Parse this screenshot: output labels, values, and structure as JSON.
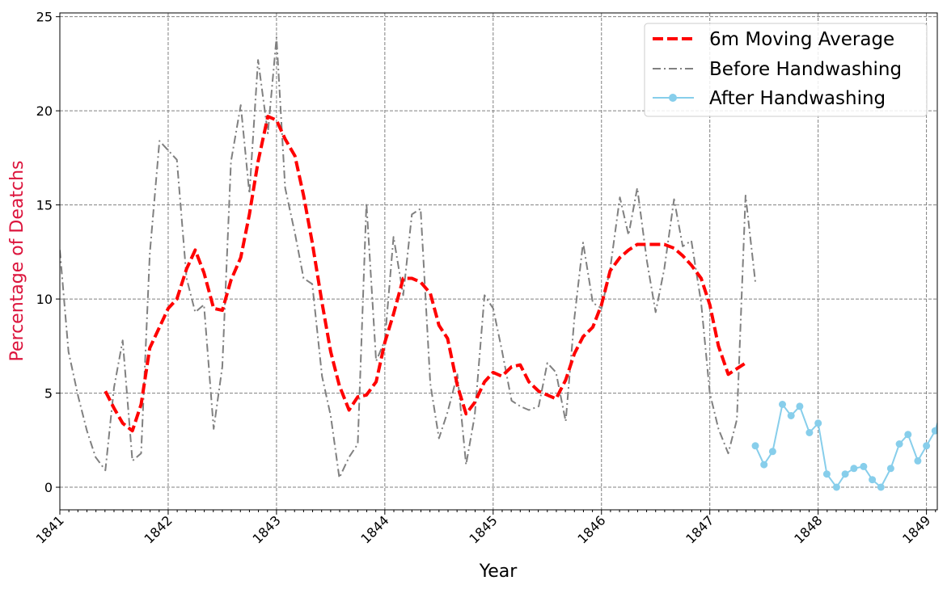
{
  "chart_data": {
    "type": "line",
    "xlabel": "Year",
    "ylabel": "Percentage of Deatchs",
    "ylabel_color": "#dc143c",
    "xlim": [
      1841.0,
      1849.1
    ],
    "ylim": [
      -1.2,
      25.2
    ],
    "x_ticks": [
      "1841",
      "1842",
      "1843",
      "1844",
      "1845",
      "1846",
      "1847",
      "1848",
      "1849"
    ],
    "y_ticks": [
      "0",
      "5",
      "10",
      "15",
      "20",
      "25"
    ],
    "grid": true,
    "legend_position": "top-right",
    "series": [
      {
        "name": "6m Moving Average",
        "color": "#ff0000",
        "style": "dashed",
        "points": [
          [
            1841.42,
            5.1
          ],
          [
            1841.5,
            4.2
          ],
          [
            1841.58,
            3.4
          ],
          [
            1841.67,
            3.0
          ],
          [
            1841.75,
            4.4
          ],
          [
            1841.83,
            7.4
          ],
          [
            1841.92,
            8.5
          ],
          [
            1842.0,
            9.5
          ],
          [
            1842.08,
            10.0
          ],
          [
            1842.17,
            11.6
          ],
          [
            1842.25,
            12.6
          ],
          [
            1842.33,
            11.4
          ],
          [
            1842.42,
            9.5
          ],
          [
            1842.5,
            9.4
          ],
          [
            1842.58,
            11.0
          ],
          [
            1842.67,
            12.2
          ],
          [
            1842.75,
            14.5
          ],
          [
            1842.83,
            17.3
          ],
          [
            1842.92,
            19.7
          ],
          [
            1843.0,
            19.5
          ],
          [
            1843.08,
            18.5
          ],
          [
            1843.17,
            17.6
          ],
          [
            1843.25,
            15.5
          ],
          [
            1843.33,
            13.0
          ],
          [
            1843.42,
            9.8
          ],
          [
            1843.5,
            7.2
          ],
          [
            1843.58,
            5.4
          ],
          [
            1843.67,
            4.1
          ],
          [
            1843.75,
            4.8
          ],
          [
            1843.83,
            4.9
          ],
          [
            1843.92,
            5.6
          ],
          [
            1844.0,
            7.7
          ],
          [
            1844.08,
            9.2
          ],
          [
            1844.17,
            11.1
          ],
          [
            1844.25,
            11.1
          ],
          [
            1844.33,
            10.9
          ],
          [
            1844.42,
            10.3
          ],
          [
            1844.5,
            8.6
          ],
          [
            1844.58,
            7.9
          ],
          [
            1844.67,
            5.4
          ],
          [
            1844.75,
            3.9
          ],
          [
            1844.83,
            4.5
          ],
          [
            1844.92,
            5.6
          ],
          [
            1845.0,
            6.1
          ],
          [
            1845.08,
            5.9
          ],
          [
            1845.17,
            6.4
          ],
          [
            1845.25,
            6.5
          ],
          [
            1845.33,
            5.6
          ],
          [
            1845.42,
            5.1
          ],
          [
            1845.5,
            4.9
          ],
          [
            1845.58,
            4.7
          ],
          [
            1845.67,
            5.7
          ],
          [
            1845.75,
            7.1
          ],
          [
            1845.83,
            8.0
          ],
          [
            1845.92,
            8.5
          ],
          [
            1846.0,
            9.7
          ],
          [
            1846.08,
            11.5
          ],
          [
            1846.17,
            12.2
          ],
          [
            1846.25,
            12.6
          ],
          [
            1846.33,
            12.9
          ],
          [
            1846.42,
            12.9
          ],
          [
            1846.5,
            12.9
          ],
          [
            1846.58,
            12.9
          ],
          [
            1846.67,
            12.7
          ],
          [
            1846.75,
            12.3
          ],
          [
            1846.83,
            11.8
          ],
          [
            1846.92,
            11.1
          ],
          [
            1847.0,
            9.7
          ],
          [
            1847.08,
            7.5
          ],
          [
            1847.17,
            6.0
          ],
          [
            1847.25,
            6.3
          ],
          [
            1847.33,
            6.6
          ]
        ]
      },
      {
        "name": "Before Handwashing",
        "color": "#808080",
        "style": "dashdot",
        "points": [
          [
            1841.0,
            12.6
          ],
          [
            1841.08,
            7.2
          ],
          [
            1841.17,
            4.8
          ],
          [
            1841.25,
            3.0
          ],
          [
            1841.33,
            1.6
          ],
          [
            1841.42,
            0.9
          ],
          [
            1841.5,
            5.3
          ],
          [
            1841.58,
            7.8
          ],
          [
            1841.67,
            1.4
          ],
          [
            1841.75,
            1.8
          ],
          [
            1841.83,
            12.4
          ],
          [
            1841.92,
            18.4
          ],
          [
            1842.0,
            17.9
          ],
          [
            1842.08,
            17.4
          ],
          [
            1842.17,
            11.1
          ],
          [
            1842.25,
            9.3
          ],
          [
            1842.33,
            9.7
          ],
          [
            1842.42,
            3.1
          ],
          [
            1842.5,
            6.4
          ],
          [
            1842.58,
            17.3
          ],
          [
            1842.67,
            20.3
          ],
          [
            1842.75,
            15.6
          ],
          [
            1842.83,
            22.7
          ],
          [
            1842.92,
            18.8
          ],
          [
            1843.0,
            23.9
          ],
          [
            1843.08,
            15.9
          ],
          [
            1843.17,
            13.5
          ],
          [
            1843.25,
            11.1
          ],
          [
            1843.33,
            10.8
          ],
          [
            1843.42,
            5.9
          ],
          [
            1843.5,
            3.8
          ],
          [
            1843.58,
            0.5
          ],
          [
            1843.67,
            1.6
          ],
          [
            1843.75,
            2.3
          ],
          [
            1843.83,
            15.1
          ],
          [
            1843.92,
            6.7
          ],
          [
            1844.0,
            7.8
          ],
          [
            1844.08,
            13.3
          ],
          [
            1844.17,
            10.2
          ],
          [
            1844.25,
            14.5
          ],
          [
            1844.33,
            14.8
          ],
          [
            1844.42,
            5.5
          ],
          [
            1844.5,
            2.6
          ],
          [
            1844.58,
            4.0
          ],
          [
            1844.67,
            6.0
          ],
          [
            1844.75,
            1.2
          ],
          [
            1844.83,
            3.8
          ],
          [
            1844.92,
            10.2
          ],
          [
            1845.0,
            9.5
          ],
          [
            1845.08,
            7.3
          ],
          [
            1845.17,
            4.6
          ],
          [
            1845.25,
            4.3
          ],
          [
            1845.33,
            4.1
          ],
          [
            1845.42,
            4.3
          ],
          [
            1845.5,
            6.6
          ],
          [
            1845.58,
            6.1
          ],
          [
            1845.67,
            3.5
          ],
          [
            1845.75,
            9.0
          ],
          [
            1845.83,
            13.0
          ],
          [
            1845.92,
            9.8
          ],
          [
            1846.0,
            9.5
          ],
          [
            1846.08,
            11.6
          ],
          [
            1846.17,
            15.4
          ],
          [
            1846.25,
            13.4
          ],
          [
            1846.33,
            15.9
          ],
          [
            1846.42,
            12.0
          ],
          [
            1846.5,
            9.3
          ],
          [
            1846.58,
            11.6
          ],
          [
            1846.67,
            15.3
          ],
          [
            1846.75,
            12.8
          ],
          [
            1846.83,
            13.1
          ],
          [
            1846.92,
            9.8
          ],
          [
            1847.0,
            5.0
          ],
          [
            1847.08,
            3.1
          ],
          [
            1847.17,
            1.8
          ],
          [
            1847.25,
            3.6
          ],
          [
            1847.33,
            15.5
          ],
          [
            1847.42,
            10.9
          ]
        ]
      },
      {
        "name": "After Handwashing",
        "color": "#87ceeb",
        "style": "solid-markers",
        "points": [
          [
            1847.42,
            2.2
          ],
          [
            1847.5,
            1.2
          ],
          [
            1847.58,
            1.9
          ],
          [
            1847.67,
            4.4
          ],
          [
            1847.75,
            3.8
          ],
          [
            1847.83,
            4.3
          ],
          [
            1847.92,
            2.9
          ],
          [
            1848.0,
            3.4
          ],
          [
            1848.08,
            0.7
          ],
          [
            1848.17,
            0.0
          ],
          [
            1848.25,
            0.7
          ],
          [
            1848.33,
            1.0
          ],
          [
            1848.42,
            1.1
          ],
          [
            1848.5,
            0.4
          ],
          [
            1848.58,
            0.0
          ],
          [
            1848.67,
            1.0
          ],
          [
            1848.75,
            2.3
          ],
          [
            1848.83,
            2.8
          ],
          [
            1848.92,
            1.4
          ],
          [
            1849.0,
            2.2
          ],
          [
            1849.08,
            3.0
          ],
          [
            1849.17,
            4.7
          ]
        ]
      }
    ]
  }
}
